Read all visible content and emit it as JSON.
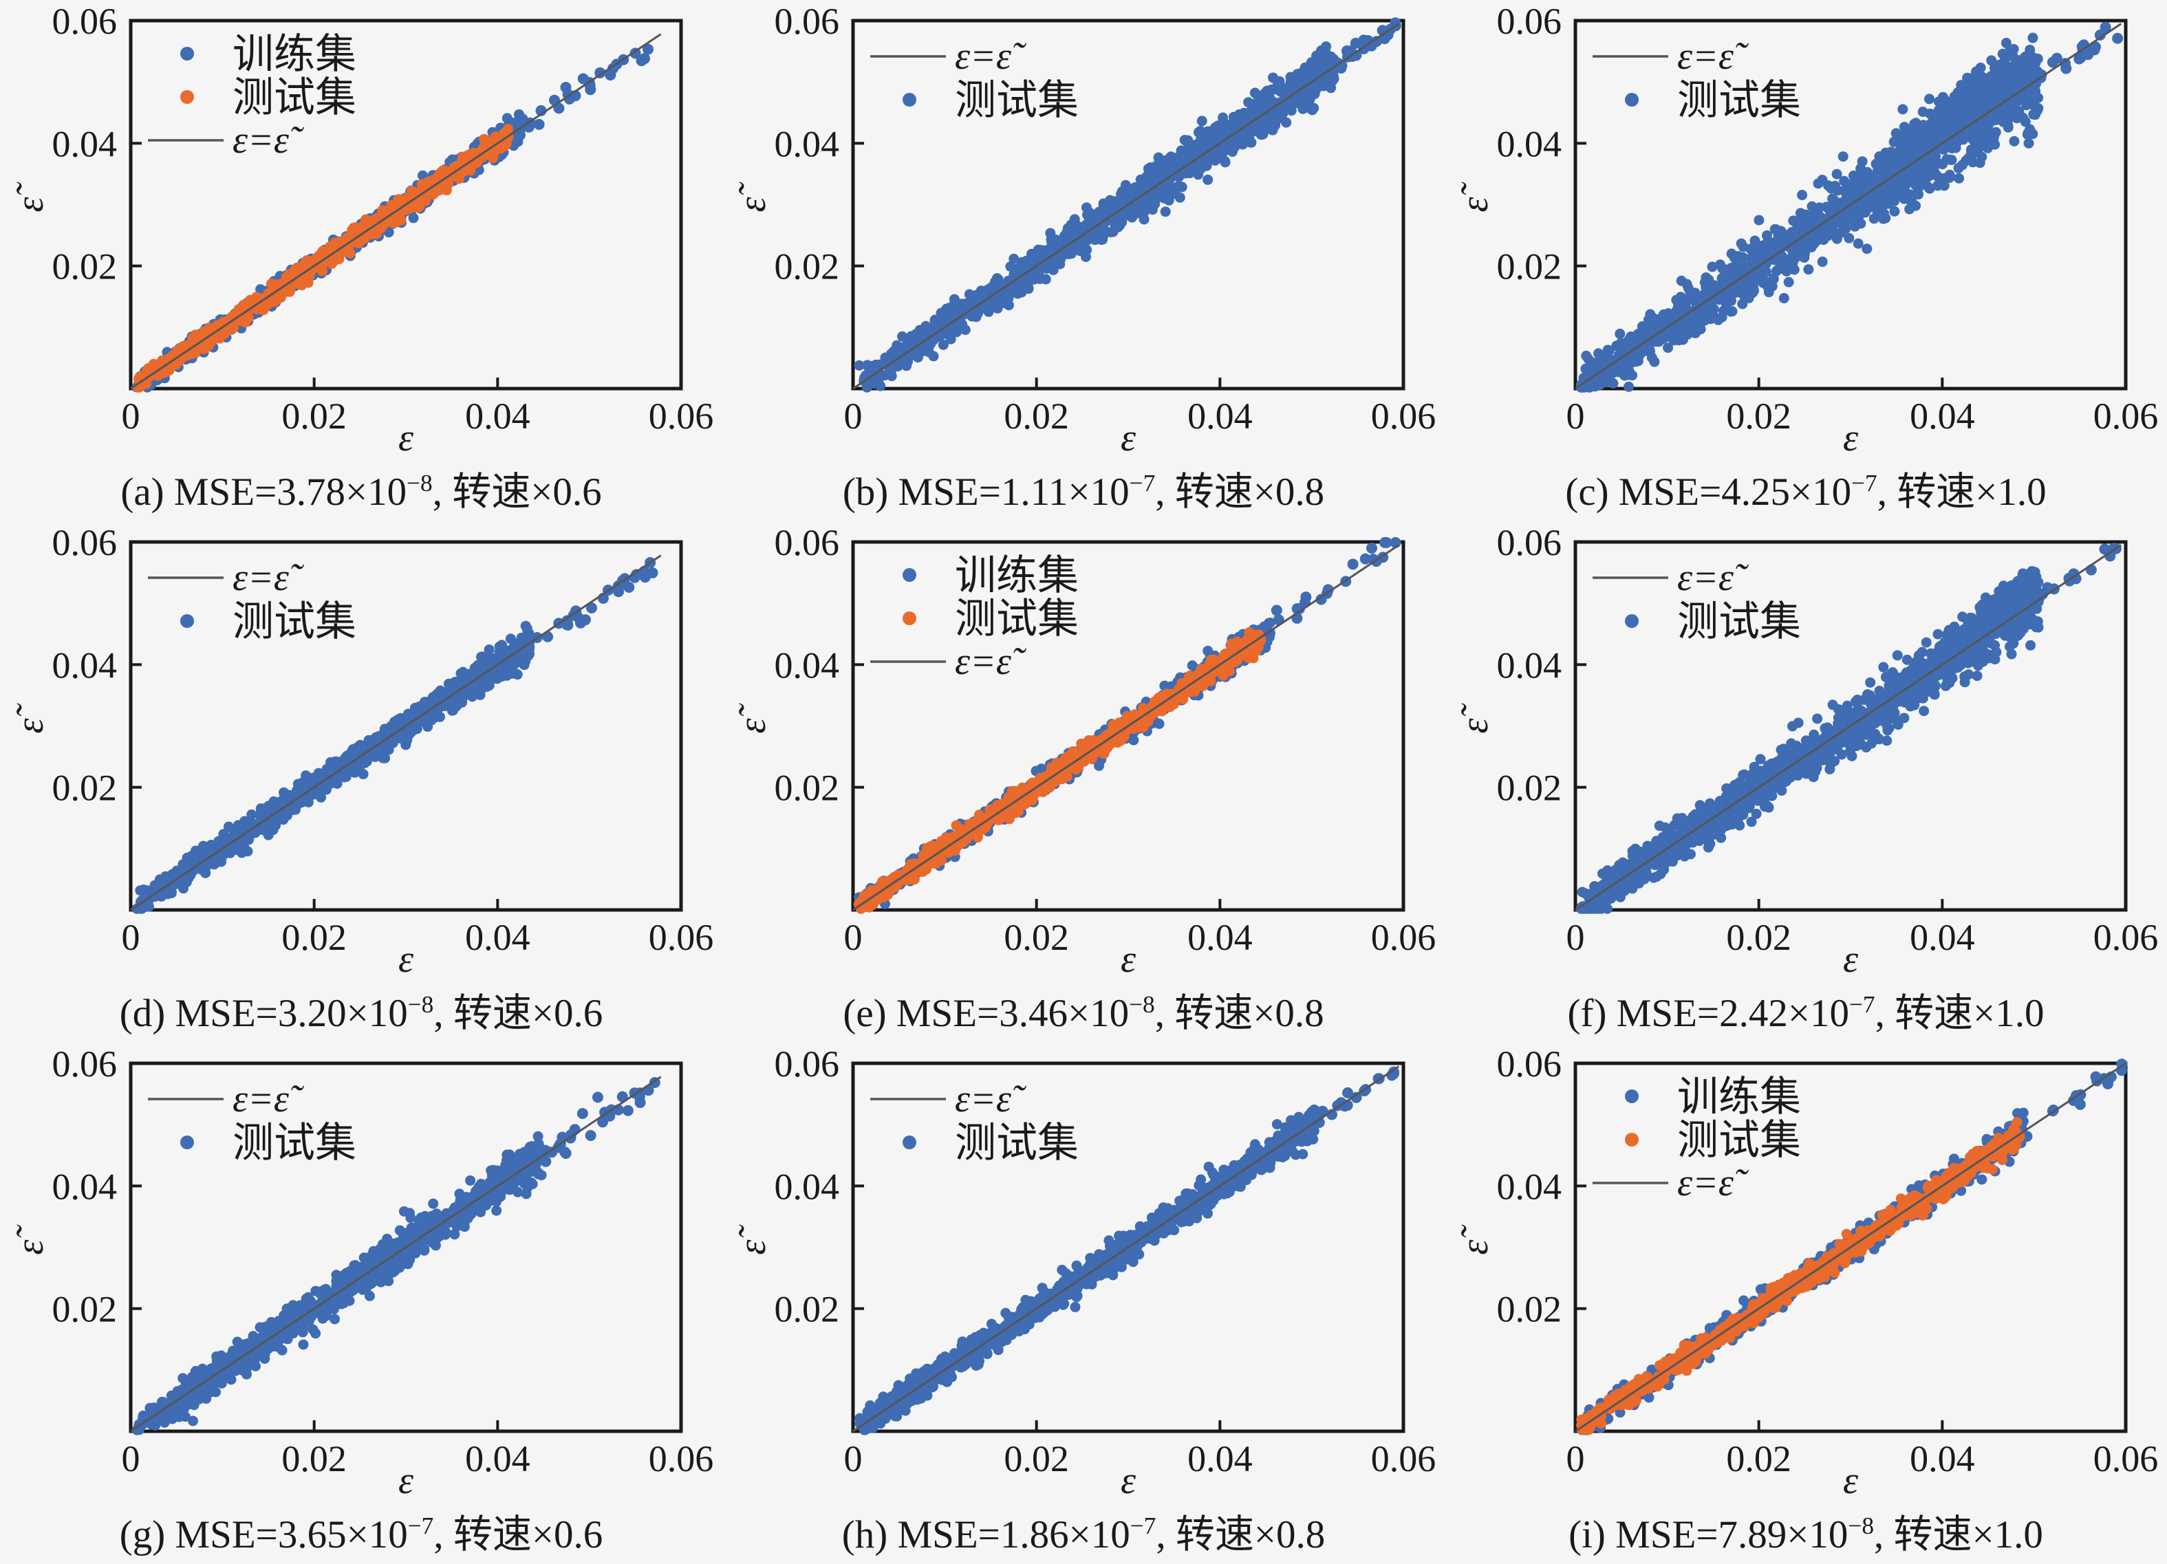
{
  "figure": {
    "description": "3x3 grid of parity scatter plots (predicted vs actual strain) for a neural-network surrogate model at three rotation speeds",
    "background": "#f5f5f6"
  },
  "colors": {
    "train": "#3f6cb2",
    "test": "#ea6a2b",
    "single": "#3f6cb2",
    "identity_line": "#55555a",
    "frame": "#1a1a1a",
    "text": "#1a1a1a"
  },
  "axis": {
    "xlabel": "ε",
    "ylabel": "ε̃",
    "tick_values": [
      0,
      0.02,
      0.04,
      0.06
    ],
    "xtick_labels": [
      "0",
      "0.02",
      "0.04",
      "0.06"
    ],
    "ytick_labels": [
      "",
      "0.02",
      "0.04",
      "0.06"
    ],
    "xlim": [
      0,
      0.06
    ],
    "ylim": [
      0,
      0.06
    ],
    "grid": "off"
  },
  "legend_labels": {
    "train": "训练集",
    "test": "测试集",
    "identity": "ε=ε̃"
  },
  "chart_data": [
    {
      "id": "a",
      "type": "scatter",
      "caption": {
        "pre": "(a) MSE=3.78×10",
        "exp": "−8",
        "post": ", 转速×0.6"
      },
      "legend": [
        "train",
        "test",
        "identity"
      ],
      "legend_position": "upper-left",
      "identity_line_extent": 0.0578,
      "series": [
        {
          "key": "train",
          "n": 750,
          "xmax": 0.0425,
          "spread": 0.00085,
          "fan": 0.3,
          "sparse": {
            "from": 0.0425,
            "to": 0.0567,
            "n": 26,
            "slope": -0.05,
            "jitter": 0.0009
          }
        },
        {
          "key": "test",
          "n": 760,
          "xmax": 0.0412,
          "spread": 0.0007,
          "fan": 0.2
        }
      ]
    },
    {
      "id": "b",
      "type": "scatter",
      "caption": {
        "pre": "(b) MSE=1.11×10",
        "exp": "−7",
        "post": ", 转速×0.8"
      },
      "legend": [
        "identity",
        "test"
      ],
      "legend_position": "upper-left",
      "identity_line_extent": 0.0595,
      "series": [
        {
          "key": "test",
          "color_ref": "single",
          "n": 1250,
          "xmax": 0.0525,
          "spread": 0.0011,
          "fan": 0.7,
          "clusters": [
            {
              "from": 0.033,
              "to": 0.046,
              "dy": 0.0012,
              "jitter": 0.0012,
              "n": 130
            }
          ],
          "sparse": {
            "from": 0.0525,
            "to": 0.0592,
            "n": 24,
            "slope": 0,
            "jitter": 0.0008
          }
        }
      ]
    },
    {
      "id": "c",
      "type": "scatter",
      "caption": {
        "pre": "(c) MSE=4.25×10",
        "exp": "−7",
        "post": ", 转速×1.0"
      },
      "legend": [
        "identity",
        "test"
      ],
      "legend_position": "upper-left",
      "identity_line_extent": 0.0595,
      "series": [
        {
          "key": "test",
          "color_ref": "single",
          "n": 1250,
          "xmax": 0.0505,
          "spread": 0.0017,
          "fan": 1.1,
          "clusters": [
            {
              "from": 0.035,
              "to": 0.05,
              "dy": 0.0035,
              "jitter": 0.0018,
              "n": 150
            },
            {
              "from": 0.039,
              "to": 0.047,
              "dy": 0.006,
              "jitter": 0.001,
              "n": 40
            }
          ],
          "sparse": {
            "from": 0.0505,
            "to": 0.0592,
            "n": 20,
            "slope": -0.02,
            "jitter": 0.001
          }
        }
      ]
    },
    {
      "id": "d",
      "type": "scatter",
      "caption": {
        "pre": "(d) MSE=3.20×10",
        "exp": "−8",
        "post": ", 转速×0.6"
      },
      "legend": [
        "identity",
        "test"
      ],
      "legend_position": "upper-left",
      "identity_line_extent": 0.0578,
      "series": [
        {
          "key": "test",
          "color_ref": "single",
          "n": 1050,
          "xmax": 0.0435,
          "spread": 0.00095,
          "fan": 0.4,
          "sparse": {
            "from": 0.0435,
            "to": 0.0572,
            "n": 26,
            "slope": -0.07,
            "jitter": 0.001
          }
        }
      ]
    },
    {
      "id": "e",
      "type": "scatter",
      "caption": {
        "pre": "(e) MSE=3.46×10",
        "exp": "−8",
        "post": ", 转速×0.8"
      },
      "legend": [
        "train",
        "test",
        "identity"
      ],
      "legend_position": "upper-left",
      "identity_line_extent": 0.0595,
      "series": [
        {
          "key": "train",
          "n": 720,
          "xmax": 0.0455,
          "spread": 0.0009,
          "fan": 0.3,
          "sparse": {
            "from": 0.0455,
            "to": 0.0592,
            "n": 20,
            "slope": 0.09,
            "jitter": 0.0012
          }
        },
        {
          "key": "test",
          "n": 730,
          "xmax": 0.0445,
          "spread": 0.00075,
          "fan": 0.2
        }
      ]
    },
    {
      "id": "f",
      "type": "scatter",
      "caption": {
        "pre": "(f) MSE=2.42×10",
        "exp": "−7",
        "post": ", 转速×1.0"
      },
      "legend": [
        "identity",
        "test"
      ],
      "legend_position": "upper-left",
      "identity_line_extent": 0.0595,
      "series": [
        {
          "key": "test",
          "color_ref": "single",
          "n": 1250,
          "xmax": 0.0505,
          "spread": 0.0014,
          "fan": 0.9,
          "clusters": [
            {
              "from": 0.04,
              "to": 0.0495,
              "dy": 0.003,
              "jitter": 0.0012,
              "n": 110
            },
            {
              "from": 0.044,
              "to": 0.05,
              "dy": 0.0048,
              "jitter": 0.0006,
              "n": 45
            }
          ],
          "sparse": {
            "from": 0.0505,
            "to": 0.0592,
            "n": 16,
            "slope": 0,
            "jitter": 0.0007
          }
        }
      ]
    },
    {
      "id": "g",
      "type": "scatter",
      "caption": {
        "pre": "(g) MSE=3.65×10",
        "exp": "−7",
        "post": ", 转速×0.6"
      },
      "legend": [
        "identity",
        "test"
      ],
      "legend_position": "upper-left",
      "identity_line_extent": 0.0578,
      "series": [
        {
          "key": "test",
          "color_ref": "single",
          "n": 1050,
          "xmax": 0.045,
          "spread": 0.0011,
          "fan": 0.45,
          "clusters": [
            {
              "from": 0.004,
              "to": 0.009,
              "dy": -0.0005,
              "jitter": 0.0012,
              "n": 80
            }
          ],
          "sparse": {
            "from": 0.045,
            "to": 0.0572,
            "n": 28,
            "slope": -0.08,
            "jitter": 0.0012
          }
        }
      ]
    },
    {
      "id": "h",
      "type": "scatter",
      "caption": {
        "pre": "(h) MSE=1.86×10",
        "exp": "−7",
        "post": ", 转速×0.8"
      },
      "legend": [
        "identity",
        "test"
      ],
      "legend_position": "upper-left",
      "identity_line_extent": 0.0595,
      "series": [
        {
          "key": "test",
          "color_ref": "single",
          "n": 1200,
          "xmax": 0.0505,
          "spread": 0.00095,
          "fan": 0.35,
          "clusters": [
            {
              "from": 0.004,
              "to": 0.009,
              "dy": 0,
              "jitter": 0.001,
              "n": 60
            }
          ],
          "sparse": {
            "from": 0.0505,
            "to": 0.0592,
            "n": 18,
            "slope": 0,
            "jitter": 0.0006
          }
        }
      ]
    },
    {
      "id": "i",
      "type": "scatter",
      "caption": {
        "pre": "(i) MSE=7.89×10",
        "exp": "−8",
        "post": ", 转速×1.0"
      },
      "legend": [
        "train",
        "test",
        "identity"
      ],
      "legend_position": "upper-left",
      "identity_line_extent": 0.06,
      "series": [
        {
          "key": "train",
          "n": 700,
          "xmax": 0.049,
          "spread": 0.001,
          "fan": 0.35,
          "sparse": {
            "from": 0.049,
            "to": 0.0598,
            "n": 14,
            "slope": 0,
            "jitter": 0.0008
          }
        },
        {
          "key": "test",
          "n": 720,
          "xmax": 0.0485,
          "spread": 0.0008,
          "fan": 0.3
        }
      ]
    }
  ]
}
